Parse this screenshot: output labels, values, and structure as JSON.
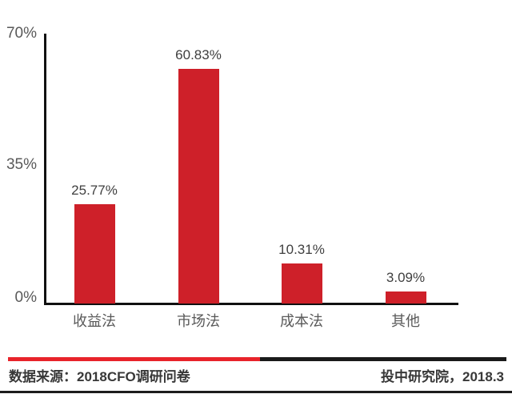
{
  "chart_data": {
    "type": "bar",
    "categories": [
      "收益法",
      "市场法",
      "成本法",
      "其他"
    ],
    "values": [
      25.77,
      60.83,
      10.31,
      3.09
    ],
    "value_labels": [
      "25.77%",
      "60.83%",
      "10.31%",
      "3.09%"
    ],
    "y_ticks": [
      "70%",
      "35%",
      "0%"
    ],
    "ylim": [
      0,
      70
    ],
    "title": "",
    "xlabel": "",
    "ylabel": "",
    "grid": false,
    "legend": false,
    "bar_color": "#ce2029",
    "axis_color": "#111111"
  },
  "footer": {
    "source_label": "数据来源：2018CFO调研问卷",
    "publisher_label": "投中研究院，2018.3",
    "divider_red_color": "#e8232a",
    "divider_black_color": "#1a1a1a"
  }
}
